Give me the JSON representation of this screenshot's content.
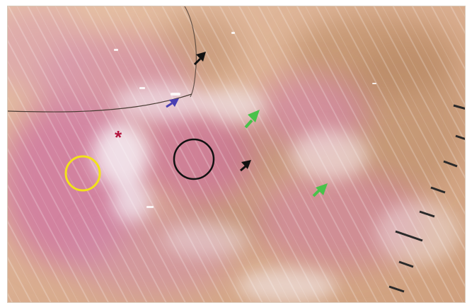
{
  "image": {
    "subject": "dermoscopy",
    "annotations": {
      "star": "*",
      "circles": [
        {
          "name": "yellow-circle",
          "color": "#f2e21a"
        },
        {
          "name": "black-circle",
          "color": "#111111"
        }
      ],
      "arrows": [
        {
          "name": "black-arrow-top",
          "color": "#111111"
        },
        {
          "name": "blue-arrow",
          "color": "#4a3fb3"
        },
        {
          "name": "green-arrow-upper",
          "color": "#49c24a"
        },
        {
          "name": "black-arrow-center",
          "color": "#111111"
        },
        {
          "name": "green-arrow-lower",
          "color": "#49c24a"
        }
      ],
      "scale_ticks": 8
    },
    "colors": {
      "skin_base": "#d9b08f",
      "pink": "#d98aa6",
      "magenta": "#c45a8f",
      "white_patch": "#f3e9ef",
      "brown": "#b98a62",
      "star": "#b3143e"
    }
  }
}
